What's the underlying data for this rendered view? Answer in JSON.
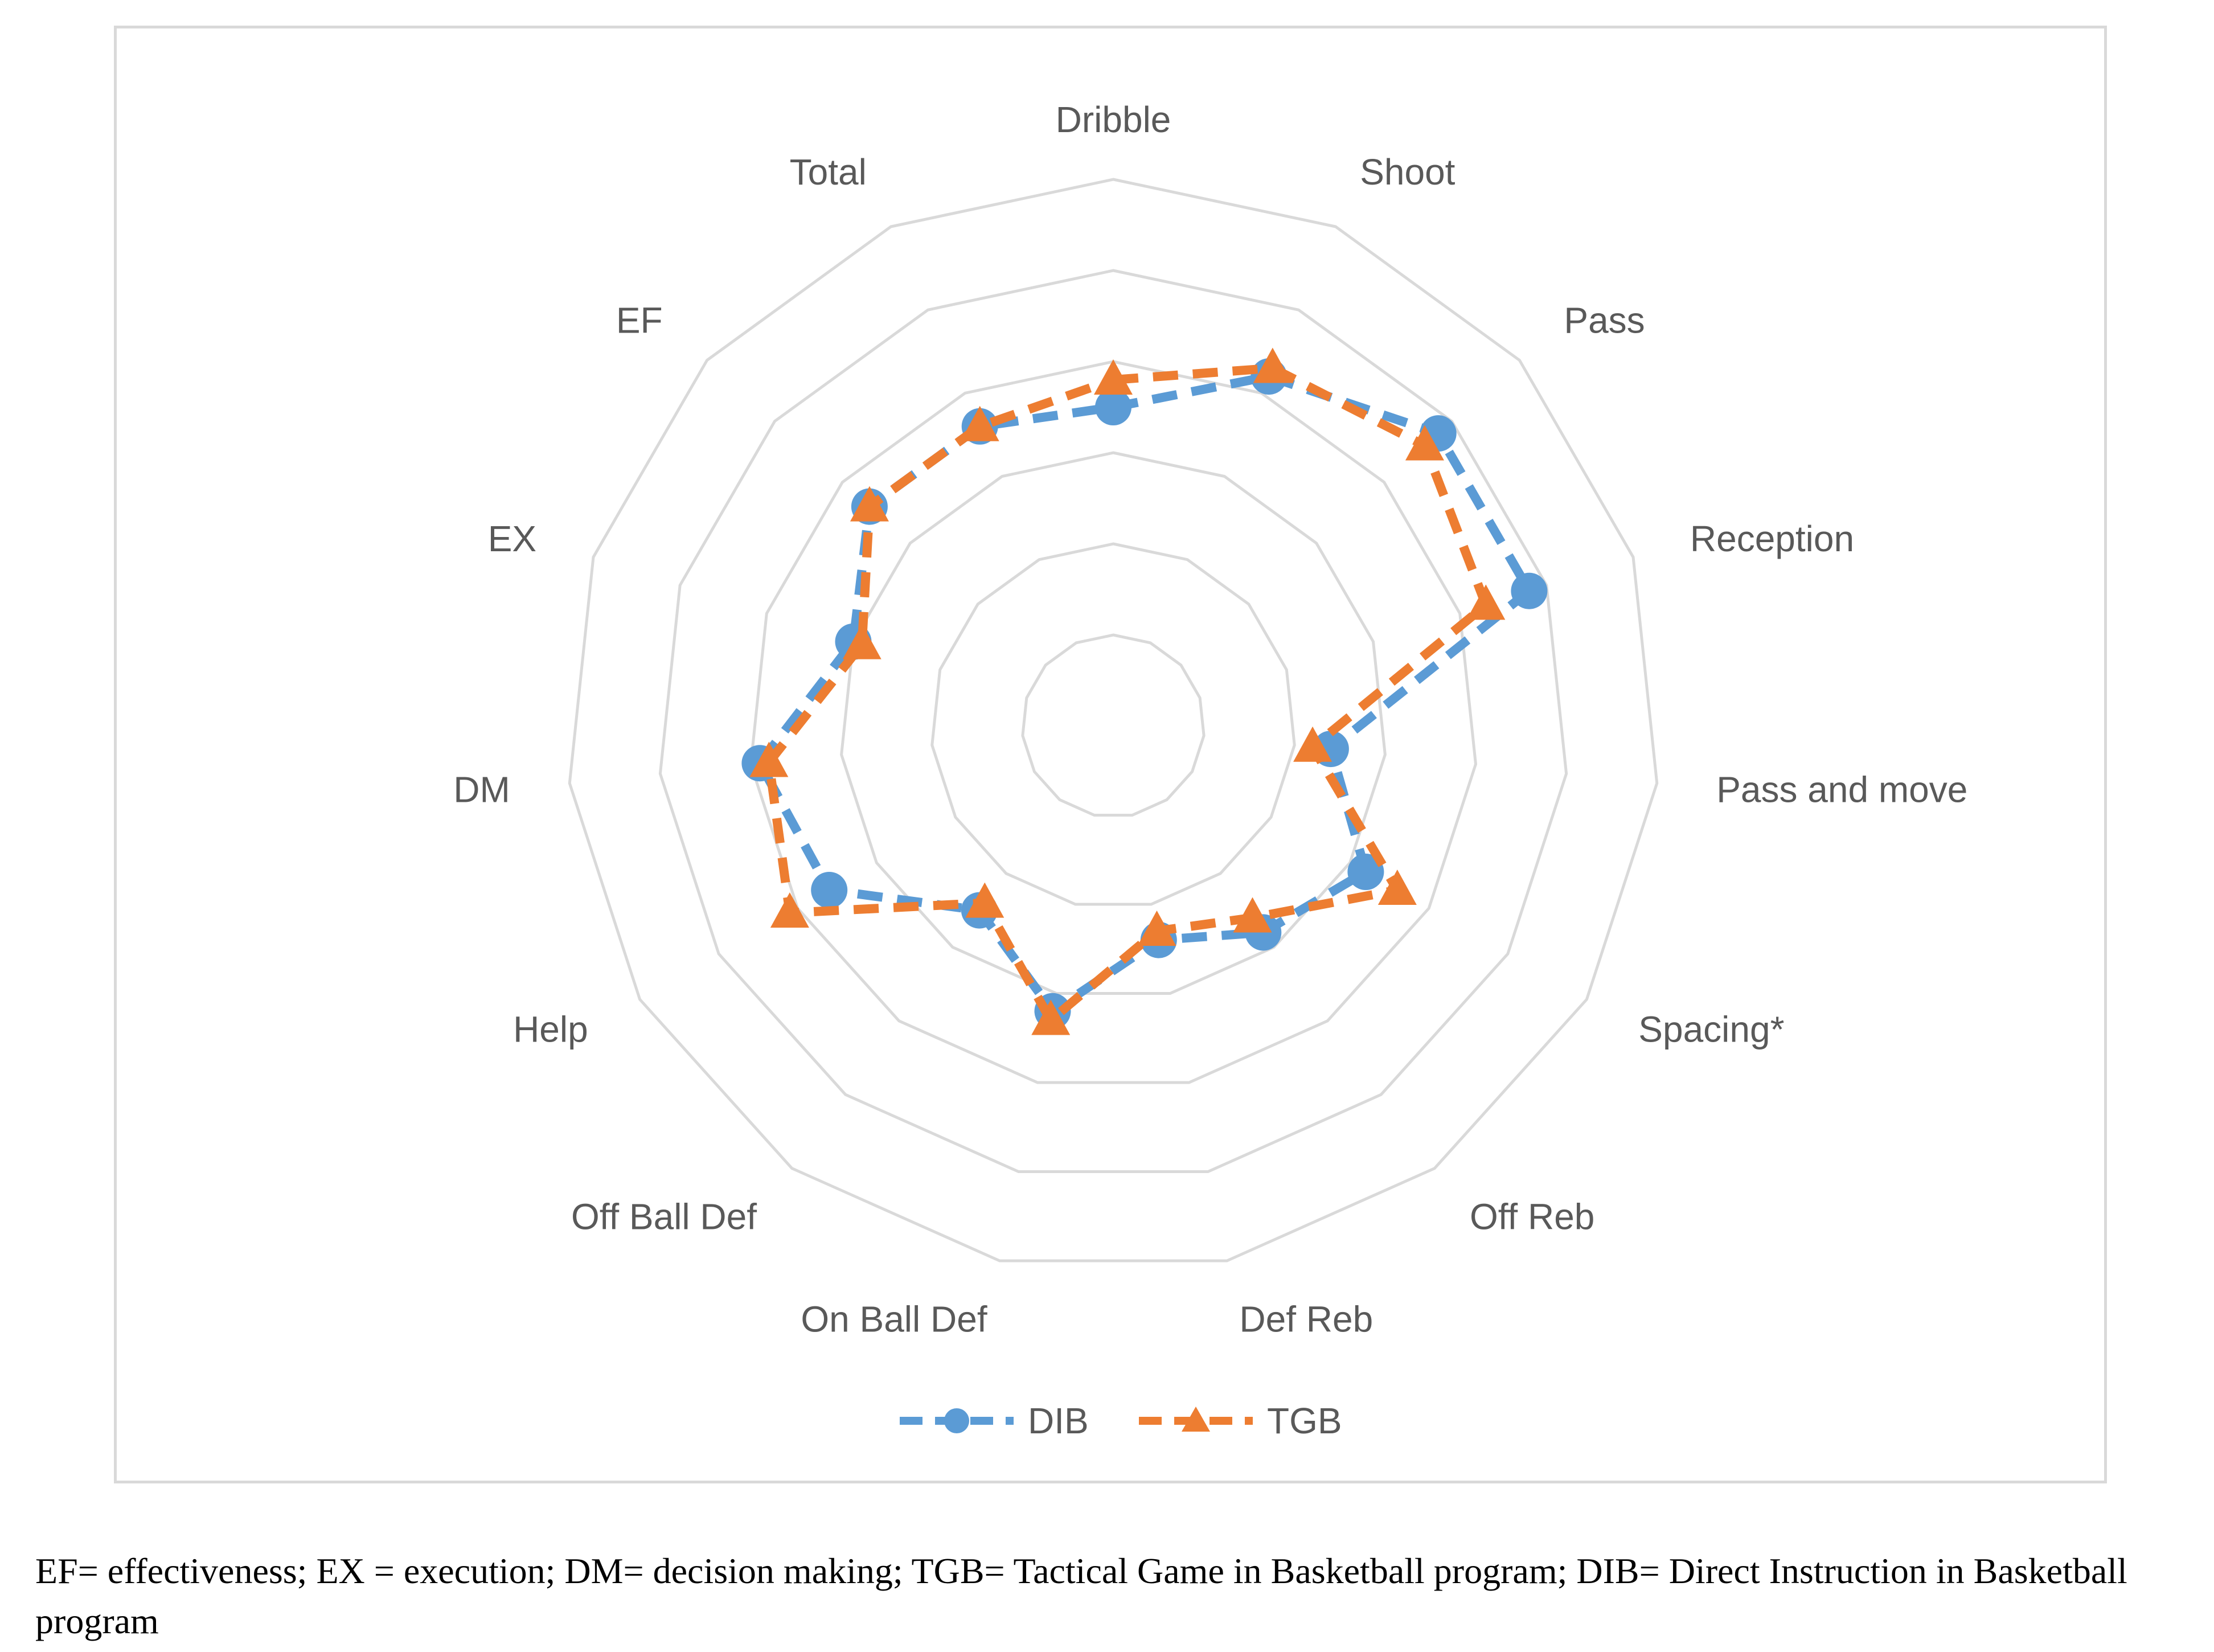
{
  "chart_data": {
    "type": "radar",
    "title": "",
    "categories": [
      "Dribble",
      "Shoot",
      "Pass",
      "Reception",
      "Pass and move",
      "Spacing*",
      "Off Reb",
      "Def Reb",
      "On Ball Def",
      "Off Ball Def",
      "Help",
      "DM",
      "EX",
      "EF",
      "Total"
    ],
    "series": [
      {
        "name": "DIB",
        "values": [
          3.5,
          4.2,
          4.8,
          4.8,
          2.4,
          3.2,
          2.8,
          2.4,
          3.2,
          2.5,
          3.6,
          3.9,
          3.0,
          3.6,
          3.6
        ],
        "color": "#5b9bd5",
        "marker": "circle"
      },
      {
        "name": "TGB",
        "values": [
          3.8,
          4.3,
          4.6,
          4.3,
          2.2,
          3.6,
          2.6,
          2.3,
          3.3,
          2.4,
          4.1,
          3.8,
          2.9,
          3.6,
          3.6
        ],
        "color": "#ed7d31",
        "marker": "triangle"
      }
    ],
    "rlim": [
      0,
      6
    ],
    "grid": true,
    "legend_position": "bottom"
  },
  "legend": {
    "dib": "DIB",
    "tgb": "TGB"
  },
  "caption": "EF= effectiveness; EX = execution; DM= decision making; TGB= Tactical Game in Basketball program; DIB= Direct Instruction in Basketball program"
}
